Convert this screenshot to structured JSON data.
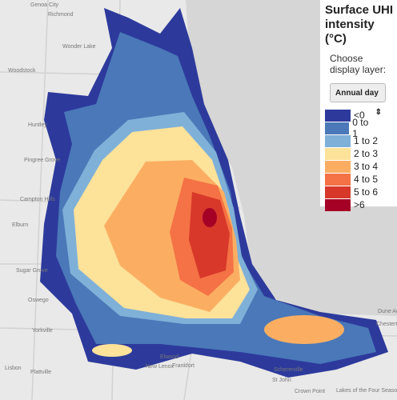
{
  "legend": {
    "title": "Surface UHI intensity (°C)",
    "prompt": "Choose display layer:",
    "dropdown": "Annual day",
    "items": [
      {
        "label": "<0",
        "color": "#2d3a9c"
      },
      {
        "label": "0 to 1",
        "color": "#4a78b8"
      },
      {
        "label": "1 to 2",
        "color": "#7fb0d8"
      },
      {
        "label": "2 to 3",
        "color": "#fde29a"
      },
      {
        "label": "3 to 4",
        "color": "#fbae62"
      },
      {
        "label": "4 to 5",
        "color": "#f47245"
      },
      {
        "label": "5 to 6",
        "color": "#d8382a"
      },
      {
        "label": ">6",
        "color": "#a50026"
      }
    ]
  },
  "places": [
    "Genoa City",
    "Richmond",
    "Wonder Lake",
    "Woodstock",
    "Huntley",
    "Pingree Grove",
    "Campton Hills",
    "Elburn",
    "Sugar Grove",
    "Oswego",
    "Yorkville",
    "Plattville",
    "Lisbon",
    "Elwood",
    "New Lenox",
    "Frankfort",
    "Schererville",
    "St John",
    "Crown Point",
    "Lakes of the Four Seasons",
    "Chesterton",
    "Dune Acres"
  ]
}
